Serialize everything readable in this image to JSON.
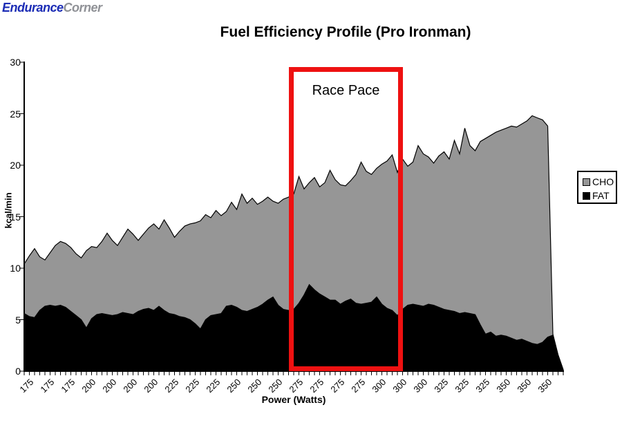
{
  "logo": {
    "part1": "Endurance",
    "part2": "Corner"
  },
  "chart_data": {
    "type": "area",
    "stacked": true,
    "title": "Fuel Efficiency Profile (Pro Ironman)",
    "xlabel": "Power (Watts)",
    "ylabel": "kcal/min",
    "ylim": [
      0,
      30
    ],
    "yticks": [
      0,
      5,
      10,
      15,
      20,
      25,
      30
    ],
    "grid": "off",
    "x_tick_labels": [
      "175",
      "175",
      "175",
      "200",
      "200",
      "200",
      "200",
      "225",
      "225",
      "225",
      "250",
      "250",
      "250",
      "275",
      "275",
      "275",
      "275",
      "300",
      "300",
      "300",
      "325",
      "325",
      "325",
      "350",
      "350",
      "350"
    ],
    "x_tick_label_every": 4,
    "x_tick_label_start_index": 1,
    "series": [
      {
        "name": "FAT",
        "color": "#000000",
        "values": [
          5.6,
          5.3,
          5.2,
          5.9,
          6.3,
          6.4,
          6.3,
          6.4,
          6.2,
          5.8,
          5.4,
          5.0,
          4.2,
          5.1,
          5.5,
          5.6,
          5.5,
          5.4,
          5.5,
          5.7,
          5.6,
          5.5,
          5.8,
          6.0,
          6.1,
          5.9,
          6.3,
          5.9,
          5.6,
          5.5,
          5.3,
          5.2,
          5.0,
          4.6,
          4.1,
          5.0,
          5.4,
          5.5,
          5.6,
          6.3,
          6.4,
          6.2,
          5.9,
          5.8,
          6.0,
          6.2,
          6.5,
          6.9,
          7.2,
          6.4,
          6.0,
          5.9,
          6.0,
          6.6,
          7.4,
          8.4,
          7.9,
          7.5,
          7.2,
          6.9,
          6.9,
          6.5,
          6.8,
          7.0,
          6.6,
          6.5,
          6.6,
          6.7,
          7.2,
          6.5,
          6.1,
          5.9,
          5.4,
          6.0,
          6.4,
          6.5,
          6.4,
          6.3,
          6.5,
          6.4,
          6.2,
          6.0,
          5.9,
          5.8,
          5.6,
          5.7,
          5.6,
          5.5,
          4.5,
          3.6,
          3.8,
          3.4,
          3.5,
          3.4,
          3.2,
          3.0,
          3.1,
          2.9,
          2.7,
          2.6,
          2.8,
          3.3,
          3.5,
          1.5,
          0.1
        ]
      },
      {
        "name": "CHO",
        "color": "#969696",
        "values": [
          4.8,
          5.9,
          6.7,
          5.2,
          4.5,
          5.1,
          5.9,
          6.2,
          6.2,
          6.2,
          6.0,
          6.0,
          7.5,
          7.0,
          6.5,
          7.0,
          7.9,
          7.3,
          6.7,
          7.3,
          8.2,
          7.8,
          6.9,
          7.3,
          7.8,
          8.4,
          7.5,
          8.8,
          8.3,
          7.5,
          8.3,
          8.9,
          9.3,
          9.8,
          10.5,
          10.2,
          9.5,
          10.1,
          9.5,
          9.2,
          10.0,
          9.5,
          11.3,
          10.5,
          10.8,
          10.0,
          10.0,
          10.0,
          9.3,
          9.9,
          10.7,
          11.0,
          11.2,
          12.3,
          10.3,
          9.9,
          10.9,
          10.4,
          11.1,
          12.6,
          11.7,
          11.6,
          11.2,
          11.5,
          12.5,
          13.8,
          12.8,
          12.4,
          12.5,
          13.6,
          14.3,
          15.1,
          13.9,
          14.6,
          13.5,
          13.8,
          15.5,
          14.8,
          14.3,
          13.8,
          14.7,
          15.3,
          14.7,
          16.6,
          15.5,
          17.9,
          16.3,
          15.9,
          17.8,
          19.0,
          19.1,
          19.8,
          19.9,
          20.2,
          20.6,
          20.7,
          20.9,
          21.4,
          22.1,
          22.0,
          21.6,
          20.5,
          0.1,
          0.1,
          0.05
        ]
      }
    ],
    "legend": {
      "position": "right",
      "entries": [
        "CHO",
        "FAT"
      ]
    },
    "annotation": {
      "label": "Race Pace",
      "x_range_watts": [
        275,
        300
      ],
      "color": "#ee1111"
    }
  }
}
